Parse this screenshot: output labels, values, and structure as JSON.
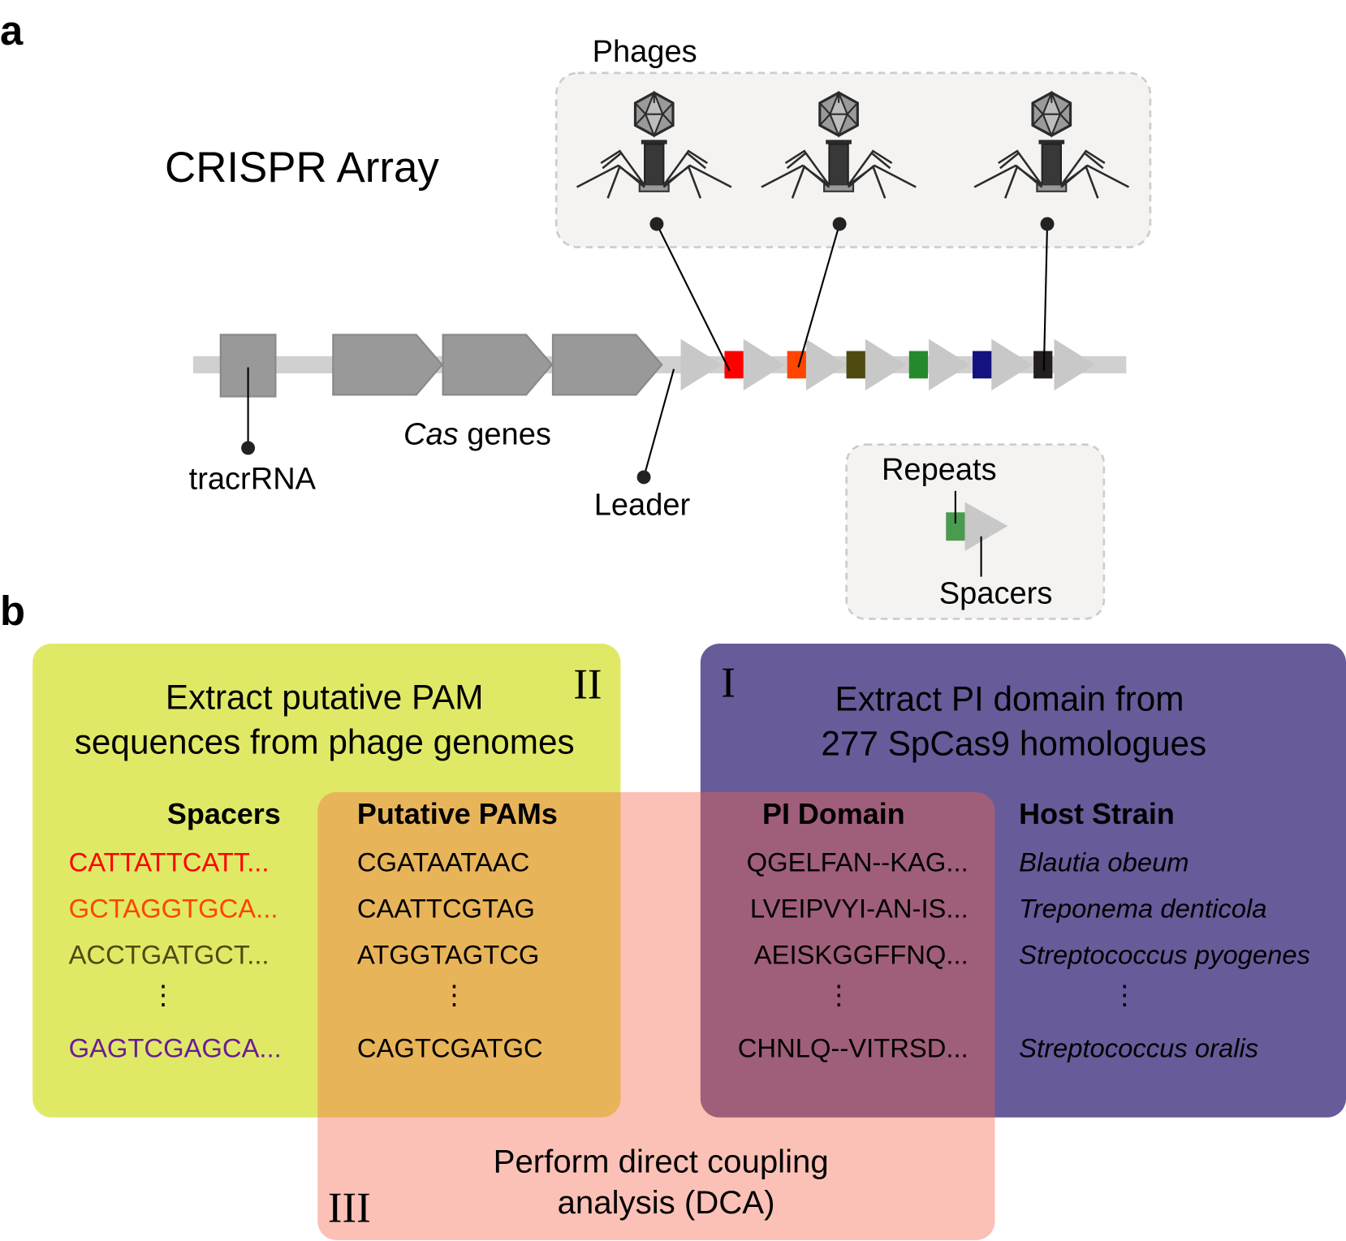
{
  "panel_a": {
    "label": "a",
    "title": "CRISPR Array",
    "phages_label": "Phages",
    "tracrRNA_label": "tracrRNA",
    "cas_italic": "Cas",
    "cas_rest": " genes",
    "leader_label": "Leader",
    "legend": {
      "repeats_label": "Repeats",
      "spacers_label": "Spacers"
    },
    "spacer_colors": [
      "#ff0000",
      "#ff4500",
      "#4f4a10",
      "#258a2d",
      "#13127f",
      "#231f20"
    ],
    "icons": [
      "phage-icon",
      "phage-icon",
      "phage-icon"
    ]
  },
  "panel_b": {
    "label": "b",
    "step_I": {
      "numeral": "I",
      "title_line1": "Extract PI domain from",
      "title_line2": "277 SpCas9 homologues",
      "color": "#675b9a"
    },
    "step_II": {
      "numeral": "II",
      "title_line1": "Extract putative PAM",
      "title_line2": "sequences from phage genomes",
      "color": "#e0e966"
    },
    "step_III": {
      "numeral": "III",
      "title_line1": "Perform direct coupling",
      "title_line2": "analysis (DCA)",
      "color": "#f56448"
    },
    "columns": {
      "spacers": {
        "header": "Spacers",
        "rows": [
          "CATTATTCATT...",
          "GCTAGGTGCA...",
          "ACCTGATGCT...",
          "⋮",
          "GAGTCGAGCA..."
        ],
        "colors": [
          "#ff0000",
          "#ff4500",
          "#4f4a10",
          "#000000",
          "#6a1b9a"
        ]
      },
      "pams": {
        "header": "Putative PAMs",
        "rows": [
          "CGATAATAAC",
          "CAATTCGTAG",
          "ATGGTAGTCG",
          "⋮",
          "CAGTCGATGC"
        ]
      },
      "pi_domain": {
        "header": "PI Domain",
        "rows": [
          "QGELFAN--KAG...",
          "LVEIPVYI-AN-IS...",
          "AEISKGGFFNQ...",
          "⋮",
          "CHNLQ--VITRSD..."
        ]
      },
      "host_strain": {
        "header": "Host Strain",
        "rows": [
          "Blautia obeum",
          "Treponema denticola",
          "Streptococcus pyogenes",
          "⋮",
          "Streptococcus oralis"
        ]
      }
    }
  }
}
